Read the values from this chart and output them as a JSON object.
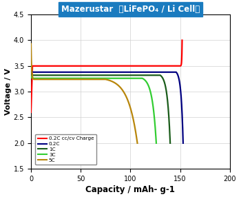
{
  "title": "Mazerustar  （LiFePO₄ / Li Cell）",
  "xlabel": "Capacity / mAh- g-1",
  "ylabel": "Voltage / V",
  "xlim": [
    0,
    200
  ],
  "ylim": [
    1.5,
    4.5
  ],
  "xticks": [
    0,
    50,
    100,
    150,
    200
  ],
  "yticks": [
    1.5,
    2.0,
    2.5,
    3.0,
    3.5,
    4.0,
    4.5
  ],
  "title_bg": "#1a7bbf",
  "title_color": "white",
  "grid_color": "#d0d0d0",
  "series": [
    {
      "label": "0.2C cc/cv Charge",
      "color": "#FF0000",
      "type": "charge",
      "x_rise_start": 0,
      "x_flat_start": 1.5,
      "x_flat_end": 149,
      "x_cv_end": 152,
      "v_start": 2.6,
      "v_flat": 3.5,
      "v_cv_end": 4.0
    },
    {
      "label": "0.2C",
      "color": "#000080",
      "type": "discharge",
      "x_plateau_end": 3,
      "x_drop_start": 146,
      "x_end": 153,
      "v_start": 3.42,
      "v_plateau": 3.38,
      "v_drop_end": 2.0
    },
    {
      "label": "1C",
      "color": "#1a5c1a",
      "type": "discharge",
      "x_plateau_end": 3,
      "x_drop_start": 130,
      "x_end": 140,
      "v_start": 3.35,
      "v_plateau": 3.32,
      "v_drop_end": 2.0
    },
    {
      "label": "3C",
      "color": "#32CD32",
      "type": "discharge",
      "x_plateau_end": 3,
      "x_drop_start": 112,
      "x_end": 126,
      "v_start": 3.3,
      "v_plateau": 3.26,
      "v_drop_end": 2.0
    },
    {
      "label": "5C",
      "color": "#B8860B",
      "type": "discharge",
      "x_plateau_end": 3,
      "x_drop_start": 75,
      "x_end": 107,
      "v_start": 3.93,
      "v_plateau": 3.24,
      "v_drop_end": 2.0
    }
  ]
}
